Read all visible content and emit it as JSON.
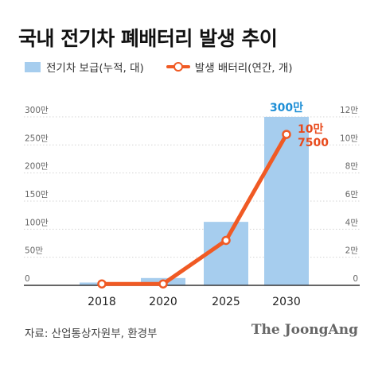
{
  "title": "국내 전기차 폐배터리 발생 추이",
  "legend": {
    "bar_label": "전기차 보급(누적, 대)",
    "line_label": "발생 배터리(연간, 개)"
  },
  "source": "자료: 산업통상자원부, 환경부",
  "brand": "The JoongAng",
  "colors": {
    "bar": "#a6cdee",
    "line": "#f05a24",
    "bar_label": "#1f8fd6",
    "line_label": "#e84a1c",
    "axis": "#333333",
    "grid": "#d4d4d4"
  },
  "chart_data": {
    "type": "bar+line",
    "categories": [
      "2018",
      "2020",
      "2025",
      "2030"
    ],
    "bar_series": {
      "name": "전기차 보급(누적, 대)",
      "values": [
        5,
        13,
        113,
        300
      ],
      "unit": "만"
    },
    "line_series": {
      "name": "발생 배터리(연간, 개)",
      "values": [
        0.1,
        0.1,
        3.2,
        10.75
      ],
      "unit": "만"
    },
    "y_left": {
      "min": 0,
      "max": 300,
      "ticks": [
        "0",
        "50만",
        "100만",
        "150만",
        "200만",
        "250만",
        "300만"
      ],
      "tick_values": [
        0,
        50,
        100,
        150,
        200,
        250,
        300
      ]
    },
    "y_right": {
      "min": 0,
      "max": 12,
      "ticks": [
        "0",
        "2만",
        "4만",
        "6만",
        "8만",
        "10만",
        "12만"
      ],
      "tick_values": [
        0,
        2,
        4,
        6,
        8,
        10,
        12
      ]
    },
    "annotations": {
      "bar_last_label": "300만",
      "line_last_label": [
        "10만",
        "7500"
      ]
    },
    "grid": true
  }
}
